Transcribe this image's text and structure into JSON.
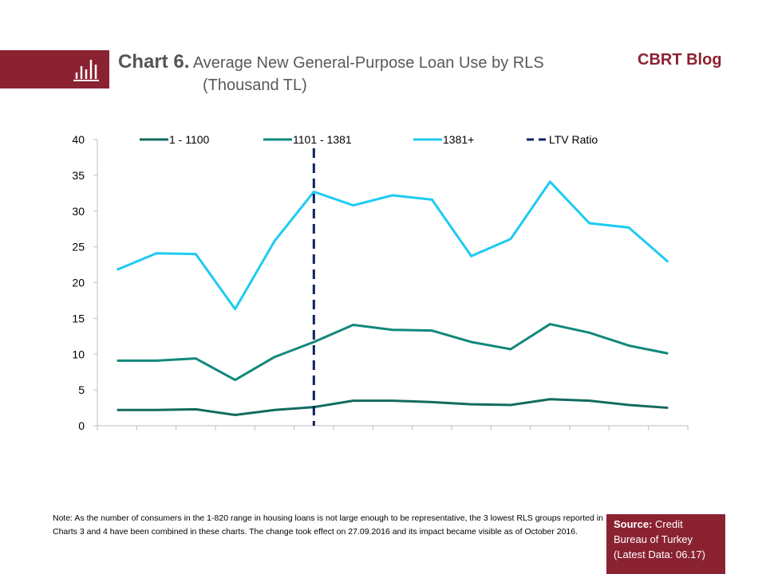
{
  "header": {
    "chart_number": "Chart 6.",
    "title": "Average New General-Purpose  Loan Use by  RLS",
    "subtitle": "(Thousand TL)",
    "brand": "CBRT Blog",
    "brand_color": "#8a2232"
  },
  "note": "Note:  As the number of consumers in the 1-820 range in housing loans is not large enough to be representative, the  3 lowest RLS groups reported  in Charts 3 and 4 have been combined in these charts. The change took effect on 27.09.2016 and its impact became visible as of October 2016.",
  "source": {
    "label": "Source:",
    "text": " Credit Bureau of Turkey (Latest Data: 06.17)"
  },
  "chart_data": {
    "type": "line",
    "title": "Average New General-Purpose Loan Use by RLS (Thousand TL)",
    "ylim": [
      0,
      40
    ],
    "yticks": [
      0,
      5,
      10,
      15,
      20,
      25,
      30,
      35,
      40
    ],
    "n_points": 15,
    "legend": "top",
    "series": [
      {
        "name": "1 - 1100",
        "color": "#136b5f",
        "values": [
          2.2,
          2.2,
          2.3,
          1.5,
          2.2,
          2.6,
          3.5,
          3.5,
          3.3,
          3.0,
          2.9,
          3.7,
          3.5,
          2.9,
          2.5
        ]
      },
      {
        "name": "1101 - 1381",
        "color": "#12887b",
        "values": [
          9.1,
          9.1,
          9.4,
          6.4,
          9.6,
          11.7,
          14.1,
          13.4,
          13.3,
          11.7,
          10.7,
          14.2,
          13.0,
          11.2,
          10.1
        ]
      },
      {
        "name": "1381+",
        "color": "#1ecbf2",
        "values": [
          21.8,
          24.1,
          24.0,
          16.3,
          25.8,
          32.7,
          30.8,
          32.2,
          31.6,
          23.7,
          26.1,
          34.1,
          28.3,
          27.7,
          22.9
        ]
      }
    ],
    "ltv": {
      "name": "LTV Ratio",
      "color": "#0d2461",
      "index": 5
    }
  }
}
